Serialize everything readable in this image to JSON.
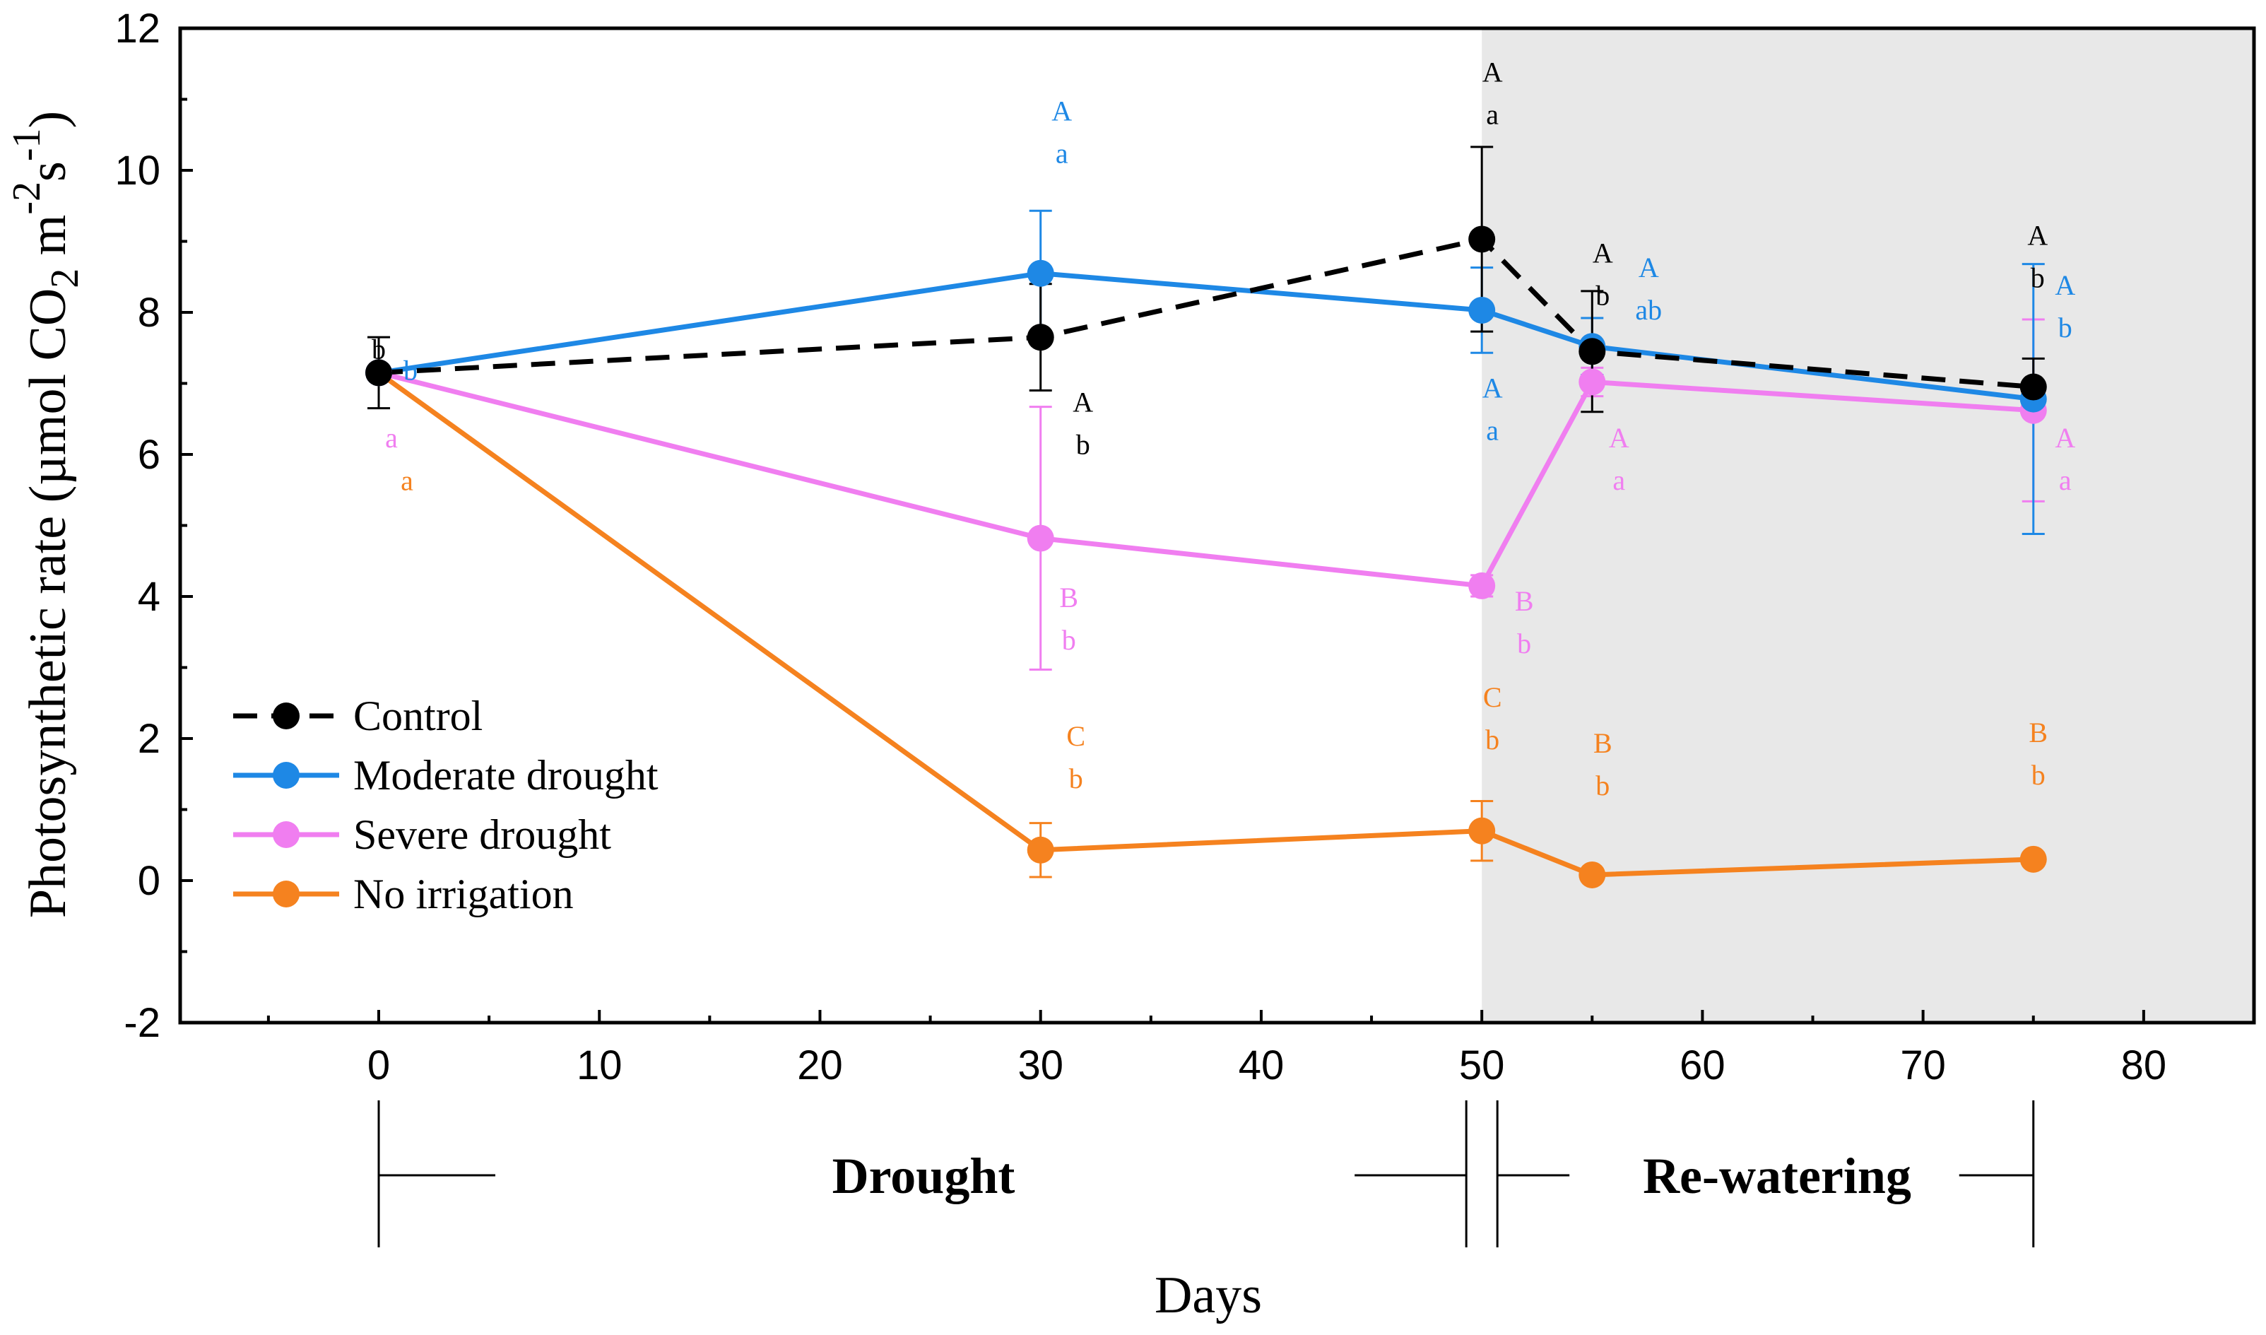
{
  "chart_data": {
    "type": "line",
    "title": "",
    "xlabel": "Days",
    "ylabel": {
      "main": "Photosynthetic rate (µmol CO",
      "sub": "2",
      "mid": " m",
      "sup1": "-2",
      "s": "s",
      "sup2": "-1",
      "close": ")"
    },
    "xlim": [
      -9,
      85
    ],
    "ylim": [
      -2,
      12
    ],
    "x_ticks": [
      "0",
      "10",
      "20",
      "30",
      "40",
      "50",
      "60",
      "70",
      "80"
    ],
    "y_ticks": [
      "-2",
      "0",
      "2",
      "4",
      "6",
      "8",
      "10",
      "12"
    ],
    "shaded_region_x": [
      50,
      85
    ],
    "series": [
      {
        "name": "Control",
        "color": "#000000",
        "dash": true,
        "points": [
          {
            "x": 0,
            "y": 7.15,
            "err": 0.5
          },
          {
            "x": 30,
            "y": 7.65,
            "err": 0.75
          },
          {
            "x": 50,
            "y": 9.03,
            "err": 1.3
          },
          {
            "x": 55,
            "y": 7.45,
            "err": 0.85
          },
          {
            "x": 75,
            "y": 6.95,
            "err": 0.4
          }
        ],
        "labels": [
          {
            "x": 0,
            "lines": [
              "b"
            ]
          },
          {
            "x": 30,
            "lines": [
              "A",
              "b"
            ]
          },
          {
            "x": 50,
            "lines": [
              "A",
              "a"
            ]
          },
          {
            "x": 55,
            "lines": [
              "A",
              "b"
            ]
          },
          {
            "x": 75,
            "lines": [
              "A",
              "b"
            ]
          }
        ]
      },
      {
        "name": "Moderate drought",
        "color": "#1e88e5",
        "dash": false,
        "points": [
          {
            "x": 0,
            "y": 7.15,
            "err": 0
          },
          {
            "x": 30,
            "y": 8.55,
            "err": 0.88
          },
          {
            "x": 50,
            "y": 8.03,
            "err": 0.6
          },
          {
            "x": 55,
            "y": 7.52,
            "err": 0.4
          },
          {
            "x": 75,
            "y": 6.78,
            "err": 1.9
          }
        ],
        "labels": [
          {
            "x": 0,
            "lines": [
              "b"
            ]
          },
          {
            "x": 30,
            "lines": [
              "A",
              "a"
            ]
          },
          {
            "x": 50,
            "lines": [
              "A",
              "a"
            ]
          },
          {
            "x": 55,
            "lines": [
              "A",
              "ab"
            ]
          },
          {
            "x": 75,
            "lines": [
              "A",
              "b"
            ]
          }
        ]
      },
      {
        "name": "Severe drought",
        "color": "#f07ef0",
        "dash": false,
        "points": [
          {
            "x": 0,
            "y": 7.15,
            "err": 0
          },
          {
            "x": 30,
            "y": 4.82,
            "err": 1.85
          },
          {
            "x": 50,
            "y": 4.15,
            "err": 0.15
          },
          {
            "x": 55,
            "y": 7.02,
            "err": 0.2
          },
          {
            "x": 75,
            "y": 6.62,
            "err": 1.28
          }
        ],
        "labels": [
          {
            "x": 0,
            "lines": [
              "a"
            ]
          },
          {
            "x": 30,
            "lines": [
              "B",
              "b"
            ]
          },
          {
            "x": 50,
            "lines": [
              "B",
              "b"
            ]
          },
          {
            "x": 55,
            "lines": [
              "A",
              "a"
            ]
          },
          {
            "x": 75,
            "lines": [
              "A",
              "a"
            ]
          }
        ]
      },
      {
        "name": "No irrigation",
        "color": "#f5821f",
        "dash": false,
        "points": [
          {
            "x": 0,
            "y": 7.15,
            "err": 0
          },
          {
            "x": 30,
            "y": 0.43,
            "err": 0.38
          },
          {
            "x": 50,
            "y": 0.7,
            "err": 0.42
          },
          {
            "x": 55,
            "y": 0.08,
            "err": 0
          },
          {
            "x": 75,
            "y": 0.3,
            "err": 0
          }
        ],
        "labels": [
          {
            "x": 0,
            "lines": [
              "a"
            ]
          },
          {
            "x": 30,
            "lines": [
              "C",
              "b"
            ]
          },
          {
            "x": 50,
            "lines": [
              "C",
              "b"
            ]
          },
          {
            "x": 55,
            "lines": [
              "B",
              "b"
            ]
          },
          {
            "x": 75,
            "lines": [
              "B",
              "b"
            ]
          }
        ]
      }
    ],
    "legend_position": "lower-left",
    "phases": [
      {
        "label": "Drought",
        "from": 0,
        "to": 50
      },
      {
        "label": "Re-watering",
        "from": 50,
        "to": 75
      }
    ]
  }
}
